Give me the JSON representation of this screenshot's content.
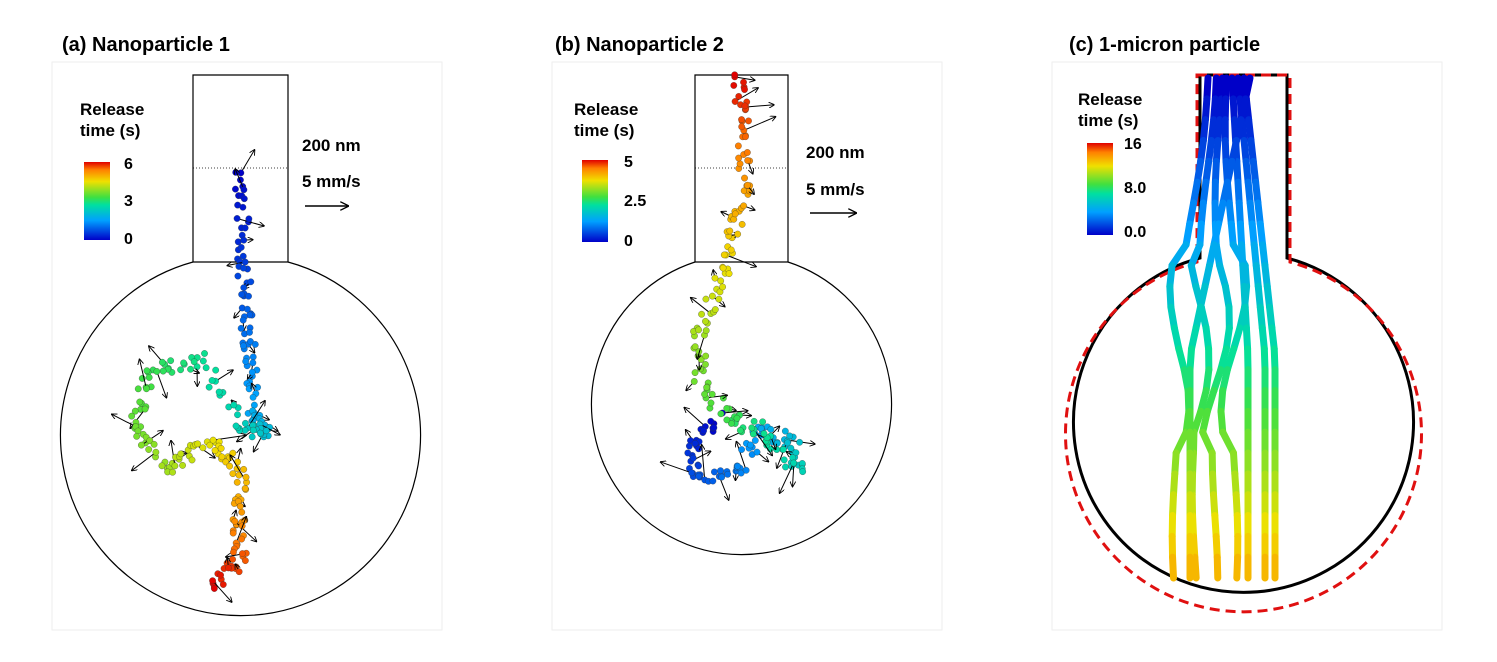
{
  "panels": [
    {
      "id": "a",
      "title": "(a) Nanoparticle 1",
      "colorbar": {
        "title_line1": "Release",
        "title_line2": "time (s)",
        "max": "6",
        "mid": "3",
        "min": "0"
      },
      "scale_length": "200 nm",
      "scale_velocity": "5 mm/s"
    },
    {
      "id": "b",
      "title": "(b) Nanoparticle 2",
      "colorbar": {
        "title_line1": "Release",
        "title_line2": "time (s)",
        "max": "5",
        "mid": "2.5",
        "min": "0"
      },
      "scale_length": "200 nm",
      "scale_velocity": "5 mm/s"
    },
    {
      "id": "c",
      "title": "(c) 1-micron particle",
      "colorbar": {
        "title_line1": "Release",
        "title_line2": "time (s)",
        "max": "16",
        "mid": "8.0",
        "min": "0.0"
      }
    }
  ],
  "colors": {
    "trajectory_arrow": "#000000",
    "outer_boundary": "#e01010",
    "outline": "#000000"
  },
  "colormap": "jet"
}
